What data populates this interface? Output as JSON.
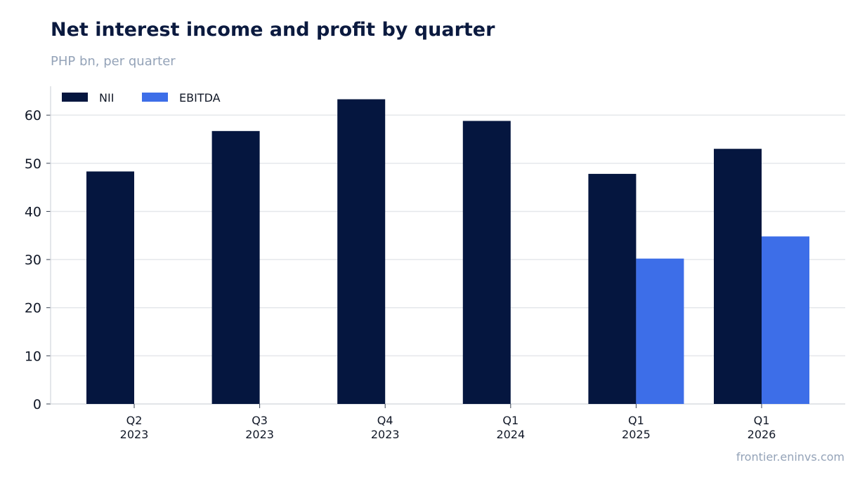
{
  "header": {
    "title": "Net interest income and profit by quarter",
    "subtitle": "PHP bn, per quarter"
  },
  "footer": {
    "source": "frontier.eninvs.com"
  },
  "colors": {
    "nii": "#05163f",
    "ebitda": "#3d6ee8",
    "grid": "#e5e7eb",
    "axis": "#d1d5db",
    "text": "#111827",
    "muted": "#94a3b8"
  },
  "chart_data": {
    "type": "bar",
    "title": "Net interest income and profit by quarter",
    "subtitle": "PHP bn, per quarter",
    "xlabel": "",
    "ylabel": "",
    "categories": [
      [
        "Q2",
        "2023"
      ],
      [
        "Q3",
        "2023"
      ],
      [
        "Q4",
        "2023"
      ],
      [
        "Q1",
        "2024"
      ],
      [
        "Q1",
        "2025"
      ],
      [
        "Q1",
        "2026"
      ]
    ],
    "series": [
      {
        "name": "NII",
        "values": [
          48.3,
          56.7,
          63.3,
          58.8,
          47.8,
          53.0
        ]
      },
      {
        "name": "EBITDA",
        "values": [
          null,
          null,
          null,
          null,
          30.2,
          34.8
        ]
      }
    ],
    "ylim": [
      0,
      66
    ],
    "yticks": [
      0,
      10,
      20,
      30,
      40,
      50,
      60
    ],
    "grid": true,
    "legend": "top-left"
  }
}
